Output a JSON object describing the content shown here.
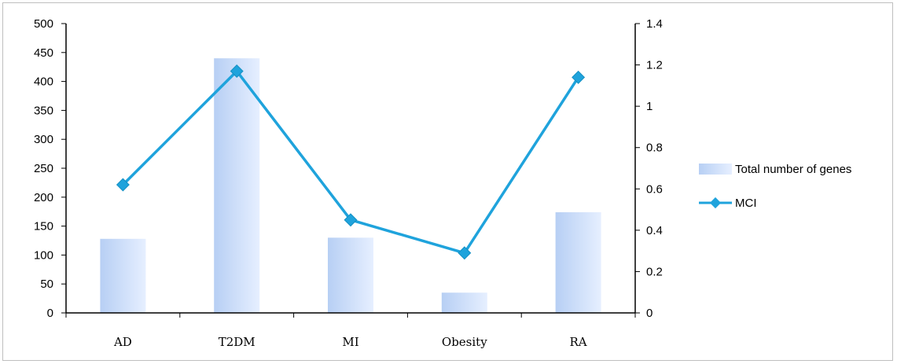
{
  "chart_data": {
    "type": "bar+line",
    "categories": [
      "AD",
      "T2DM",
      "MI",
      "Obesity",
      "RA"
    ],
    "series": [
      {
        "name": "Total number of genes",
        "type": "bar",
        "axis": "left",
        "values": [
          128,
          440,
          130,
          35,
          174
        ],
        "color": "#c9dcf7"
      },
      {
        "name": "MCI",
        "type": "line",
        "axis": "right",
        "values": [
          0.62,
          1.17,
          0.45,
          0.29,
          1.14
        ],
        "color": "#1fa3dc"
      }
    ],
    "left_axis": {
      "min": 0,
      "max": 500,
      "ticks": [
        "0",
        "50",
        "100",
        "150",
        "200",
        "250",
        "300",
        "350",
        "400",
        "450",
        "500"
      ]
    },
    "right_axis": {
      "min": 0,
      "max": 1.4,
      "ticks": [
        "0",
        "0.2",
        "0.4",
        "0.6",
        "0.8",
        "1",
        "1.2",
        "1.4"
      ]
    },
    "grid": false,
    "legend_position": "right"
  }
}
